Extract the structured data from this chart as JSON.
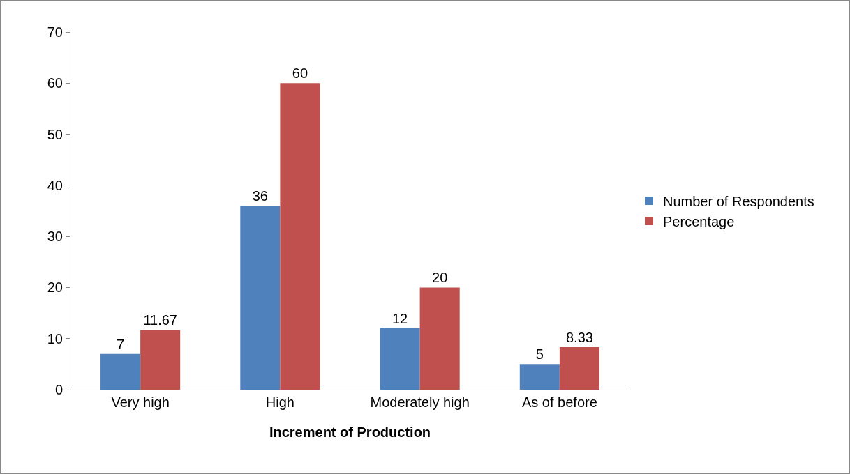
{
  "chart_data": {
    "type": "bar",
    "xlabel": "Increment of Production",
    "categories": [
      "Very high",
      "High",
      "Moderately high",
      "As of before"
    ],
    "series": [
      {
        "name": "Number of Respondents",
        "color": "#4f81bd",
        "values": [
          7,
          36,
          12,
          5
        ]
      },
      {
        "name": "Percentage",
        "color": "#c0504d",
        "values": [
          11.67,
          60,
          20,
          8.33
        ]
      }
    ],
    "ylim": [
      0,
      70
    ],
    "yticks": [
      0,
      10,
      20,
      30,
      40,
      50,
      60,
      70
    ],
    "grid": false,
    "legend": "right",
    "data_labels": true
  }
}
